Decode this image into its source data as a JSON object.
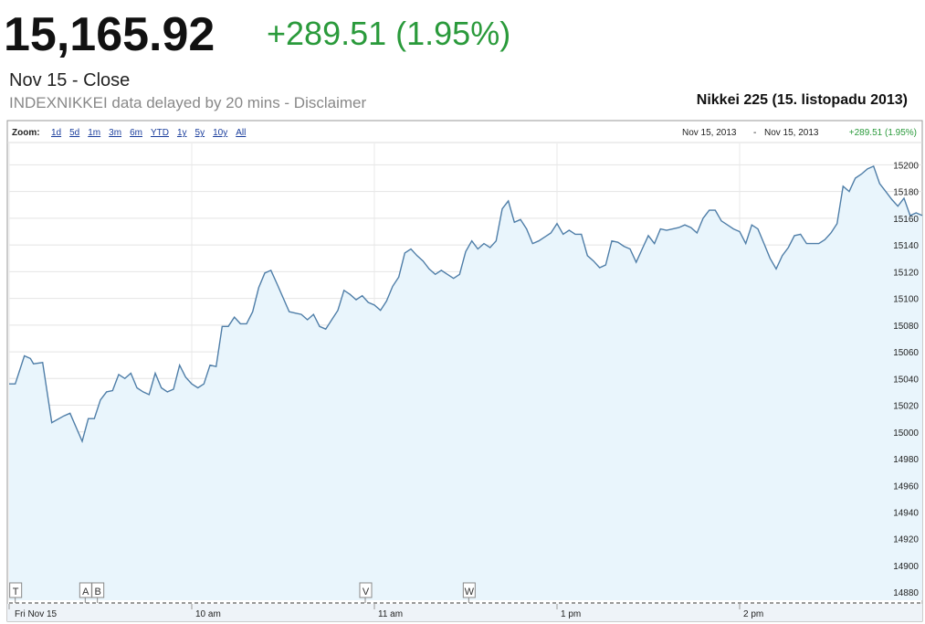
{
  "header": {
    "price": "15,165.92",
    "change": "+289.51 (1.95%)",
    "status": "Nov 15 - Close",
    "source": "INDEXNIKKEI data delayed by 20 mins - Disclaimer"
  },
  "chart_data": {
    "type": "area",
    "title": "Nikkei 225 (15. listopadu 2013)",
    "zoom_label": "Zoom:",
    "zoom_options": [
      "1d",
      "5d",
      "1m",
      "3m",
      "6m",
      "YTD",
      "1y",
      "5y",
      "10y",
      "All"
    ],
    "range": {
      "from": "Nov 15, 2013",
      "separator": "-",
      "to": "Nov 15, 2013",
      "change": "+289.51 (1.95%)"
    },
    "color": "#4f7ea8",
    "fill": "#e9f5fc",
    "grid": true,
    "x": [
      0,
      2,
      5,
      7,
      8,
      11,
      14,
      18,
      20,
      24,
      26,
      28,
      30,
      32,
      34,
      36,
      38,
      40,
      42,
      44,
      46,
      48,
      50,
      52,
      54,
      56,
      58,
      60,
      62,
      64,
      66,
      68,
      70,
      72,
      74,
      76,
      78,
      80,
      82,
      84,
      86,
      88,
      92,
      94,
      96,
      98,
      100,
      102,
      104,
      106,
      108,
      110,
      112,
      114,
      116,
      118,
      120,
      122,
      124,
      126,
      128,
      130,
      132,
      134,
      136,
      138,
      140,
      142,
      144,
      146,
      148,
      150,
      152,
      154,
      156,
      158,
      160,
      162,
      164,
      166,
      168,
      170,
      172,
      174,
      176,
      178,
      180,
      182,
      184,
      186,
      188,
      190,
      192,
      194,
      196,
      198,
      200,
      202,
      204,
      206,
      208,
      210,
      212,
      214,
      216,
      218,
      220,
      222,
      224,
      226,
      228,
      230,
      232,
      234,
      236,
      238,
      240,
      242,
      244,
      246,
      248,
      250,
      252,
      254,
      256,
      258,
      260,
      262,
      264,
      266,
      268,
      270,
      272,
      274,
      276,
      278,
      280,
      282,
      284,
      286,
      288,
      290,
      292,
      294,
      296,
      298,
      300
    ],
    "values": [
      15036,
      15036,
      15057,
      15055,
      15051,
      15052,
      15007,
      15012,
      15014,
      14993,
      15010,
      15010,
      15024,
      15030,
      15031,
      15043,
      15040,
      15044,
      15033,
      15030,
      15028,
      15044,
      15033,
      15030,
      15032,
      15050,
      15041,
      15036,
      15033,
      15036,
      15050,
      15049,
      15079,
      15079,
      15086,
      15081,
      15081,
      15090,
      15108,
      15119,
      15121,
      15111,
      15090,
      15089,
      15088,
      15084,
      15088,
      15079,
      15077,
      15084,
      15091,
      15106,
      15103,
      15099,
      15102,
      15097,
      15095,
      15091,
      15098,
      15109,
      15116,
      15134,
      15137,
      15132,
      15128,
      15122,
      15118,
      15121,
      15118,
      15115,
      15118,
      15135,
      15143,
      15137,
      15141,
      15138,
      15143,
      15167,
      15173,
      15157,
      15159,
      15152,
      15141,
      15143,
      15146,
      15149,
      15156,
      15148,
      15151,
      15148,
      15148,
      15132,
      15128,
      15123,
      15125,
      15143,
      15142,
      15139,
      15137,
      15127,
      15137,
      15147,
      15141,
      15152,
      15151,
      15152,
      15153,
      15155,
      15153,
      15149,
      15160,
      15166,
      15166,
      15158,
      15155,
      15152,
      15150,
      15141,
      15155,
      15152,
      15141,
      15130,
      15122,
      15132,
      15138,
      15147,
      15148,
      15141,
      15141,
      15141,
      15144,
      15149,
      15156,
      15184,
      15180,
      15190,
      15193,
      15197,
      15199,
      15186,
      15180,
      15174,
      15169,
      15175,
      15162,
      15164,
      15162
    ],
    "xlim": [
      0,
      300
    ],
    "xticks": [
      {
        "value": 0,
        "label": "Fri Nov 15"
      },
      {
        "value": 60,
        "label": "10 am"
      },
      {
        "value": 120,
        "label": "11 am"
      },
      {
        "value": 180,
        "label": "1 pm"
      },
      {
        "value": 240,
        "label": "2 pm"
      }
    ],
    "ylim": [
      14874,
      15216
    ],
    "yticks": [
      14880,
      14900,
      14920,
      14940,
      14960,
      14980,
      15000,
      15020,
      15040,
      15060,
      15080,
      15100,
      15120,
      15140,
      15160,
      15180,
      15200
    ],
    "flags": [
      {
        "label": "T",
        "x": 2
      },
      {
        "label": "A",
        "x": 25
      },
      {
        "label": "B",
        "x": 29
      },
      {
        "label": "V",
        "x": 117
      },
      {
        "label": "W",
        "x": 151
      }
    ]
  }
}
